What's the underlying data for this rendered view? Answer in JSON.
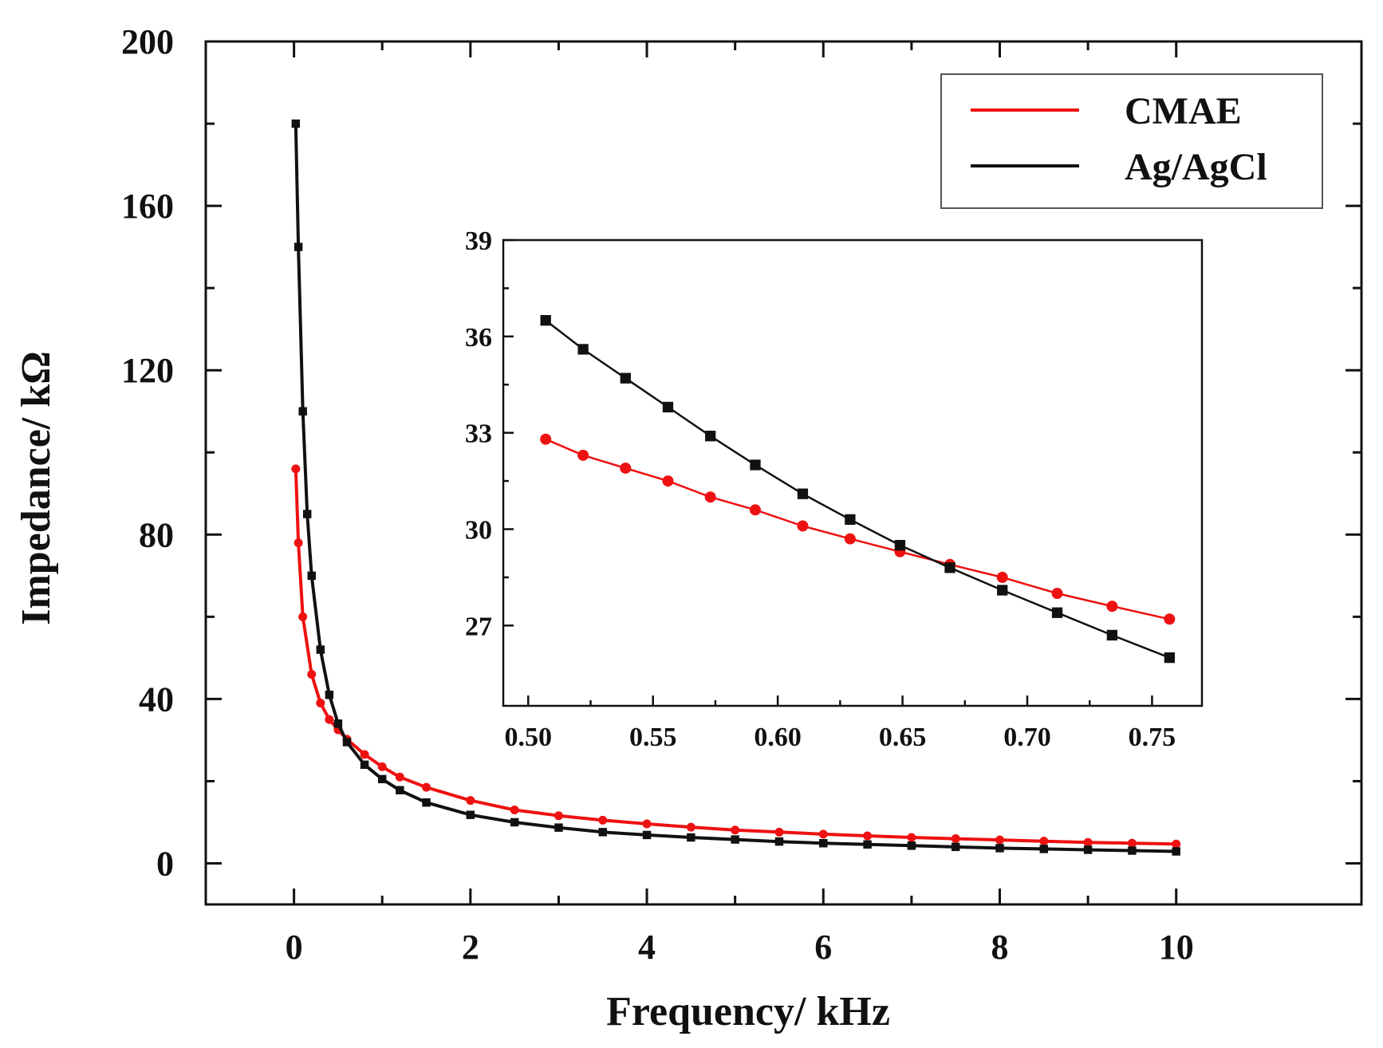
{
  "chart_data": [
    {
      "id": "main",
      "type": "line",
      "title": "",
      "xlabel": "Frequency/ kHz",
      "ylabel": "Impedance/ kΩ",
      "xlim": [
        -1,
        12.1
      ],
      "ylim": [
        -10,
        200
      ],
      "xticks": [
        0,
        2,
        4,
        6,
        8,
        10
      ],
      "xtick_labels": [
        "0",
        "2",
        "4",
        "6",
        "8",
        "10"
      ],
      "yticks": [
        0,
        40,
        80,
        120,
        160,
        200
      ],
      "ytick_labels": [
        "0",
        "40",
        "80",
        "120",
        "160",
        "200"
      ],
      "grid": false,
      "legend": {
        "position": "top-right",
        "entries": [
          "CMAE",
          "Ag/AgCl"
        ]
      },
      "series": [
        {
          "name": "CMAE",
          "color": "#ee1111",
          "marker": "circle",
          "x": [
            0.02,
            0.05,
            0.1,
            0.2,
            0.3,
            0.4,
            0.5,
            0.6,
            0.8,
            1.0,
            1.2,
            1.5,
            2.0,
            2.5,
            3.0,
            3.5,
            4.0,
            4.5,
            5.0,
            5.5,
            6.0,
            6.5,
            7.0,
            7.5,
            8.0,
            8.5,
            9.0,
            9.5,
            10.0
          ],
          "y": [
            96,
            78,
            60,
            46,
            39,
            35,
            32.5,
            30.2,
            26.5,
            23.5,
            21.0,
            18.5,
            15.3,
            13.0,
            11.6,
            10.5,
            9.6,
            8.8,
            8.1,
            7.6,
            7.1,
            6.7,
            6.3,
            6.0,
            5.7,
            5.4,
            5.1,
            4.9,
            4.7
          ]
        },
        {
          "name": "Ag/AgCl",
          "color": "#111111",
          "marker": "square",
          "x": [
            0.02,
            0.05,
            0.1,
            0.15,
            0.2,
            0.3,
            0.4,
            0.5,
            0.6,
            0.8,
            1.0,
            1.2,
            1.5,
            2.0,
            2.5,
            3.0,
            3.5,
            4.0,
            4.5,
            5.0,
            5.5,
            6.0,
            6.5,
            7.0,
            7.5,
            8.0,
            8.5,
            9.0,
            9.5,
            10.0
          ],
          "y": [
            180,
            150,
            110,
            85,
            70,
            52,
            41,
            34,
            29.5,
            24,
            20.5,
            17.8,
            14.8,
            11.8,
            10.0,
            8.7,
            7.6,
            6.9,
            6.3,
            5.8,
            5.3,
            4.9,
            4.6,
            4.3,
            4.0,
            3.7,
            3.5,
            3.3,
            3.1,
            2.9
          ]
        }
      ]
    },
    {
      "id": "inset",
      "type": "line",
      "title": "",
      "xlabel": "",
      "ylabel": "",
      "xlim": [
        0.49,
        0.77
      ],
      "ylim": [
        24.5,
        39
      ],
      "xticks": [
        0.5,
        0.55,
        0.6,
        0.65,
        0.7,
        0.75
      ],
      "xtick_labels": [
        "0.50",
        "0.55",
        "0.60",
        "0.65",
        "0.70",
        "0.75"
      ],
      "yticks": [
        27,
        30,
        33,
        36,
        39
      ],
      "ytick_labels": [
        "27",
        "30",
        "33",
        "36",
        "39"
      ],
      "grid": false,
      "series": [
        {
          "name": "CMAE",
          "color": "#ee1111",
          "marker": "circle",
          "x": [
            0.507,
            0.522,
            0.539,
            0.556,
            0.573,
            0.591,
            0.61,
            0.629,
            0.649,
            0.669,
            0.69,
            0.712,
            0.734,
            0.757
          ],
          "y": [
            32.8,
            32.3,
            31.9,
            31.5,
            31.0,
            30.6,
            30.1,
            29.7,
            29.3,
            28.9,
            28.5,
            28.0,
            27.6,
            27.2
          ]
        },
        {
          "name": "Ag/AgCl",
          "color": "#111111",
          "marker": "square",
          "x": [
            0.507,
            0.522,
            0.539,
            0.556,
            0.573,
            0.591,
            0.61,
            0.629,
            0.649,
            0.669,
            0.69,
            0.712,
            0.734,
            0.757
          ],
          "y": [
            36.5,
            35.6,
            34.7,
            33.8,
            32.9,
            32.0,
            31.1,
            30.3,
            29.5,
            28.8,
            28.1,
            27.4,
            26.7,
            26.0
          ]
        }
      ]
    }
  ]
}
